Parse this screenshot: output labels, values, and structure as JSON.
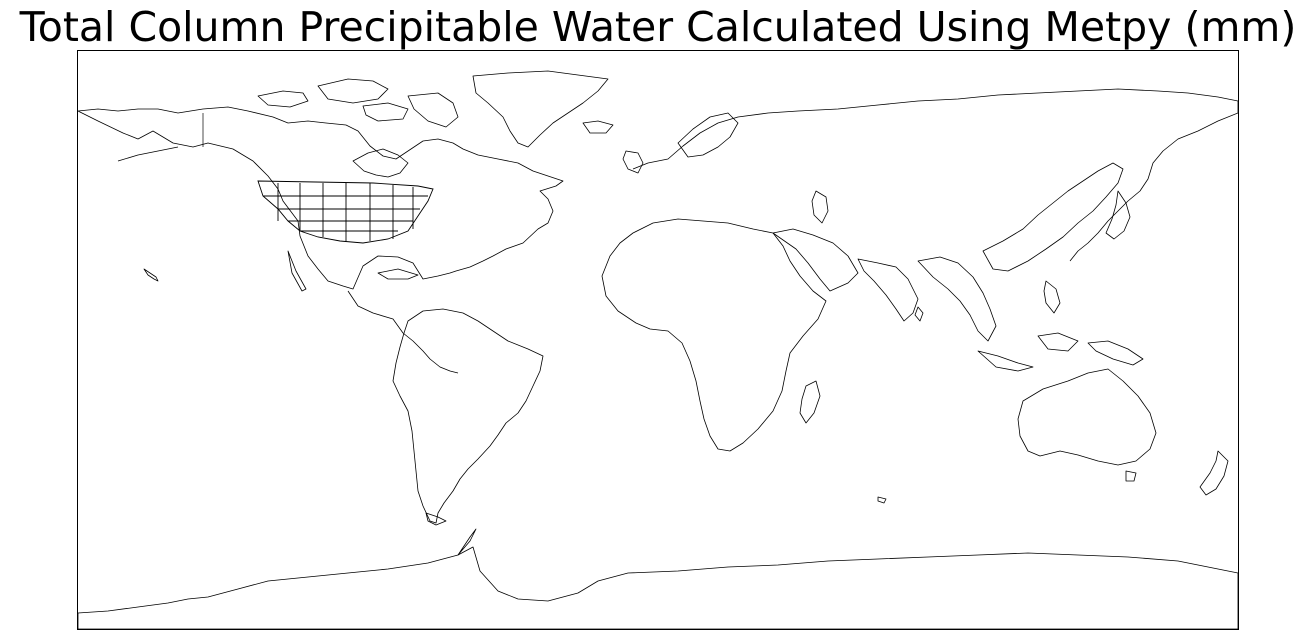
{
  "title": "Total Column Precipitable Water Calculated Using Metpy (mm)",
  "map": {
    "projection": "Plate Carree",
    "extent": {
      "lon": [
        -180,
        180
      ],
      "lat": [
        -90,
        90
      ]
    },
    "features": [
      "coastlines",
      "us-state-borders"
    ],
    "line_color": "#000000",
    "background": "#ffffff"
  }
}
